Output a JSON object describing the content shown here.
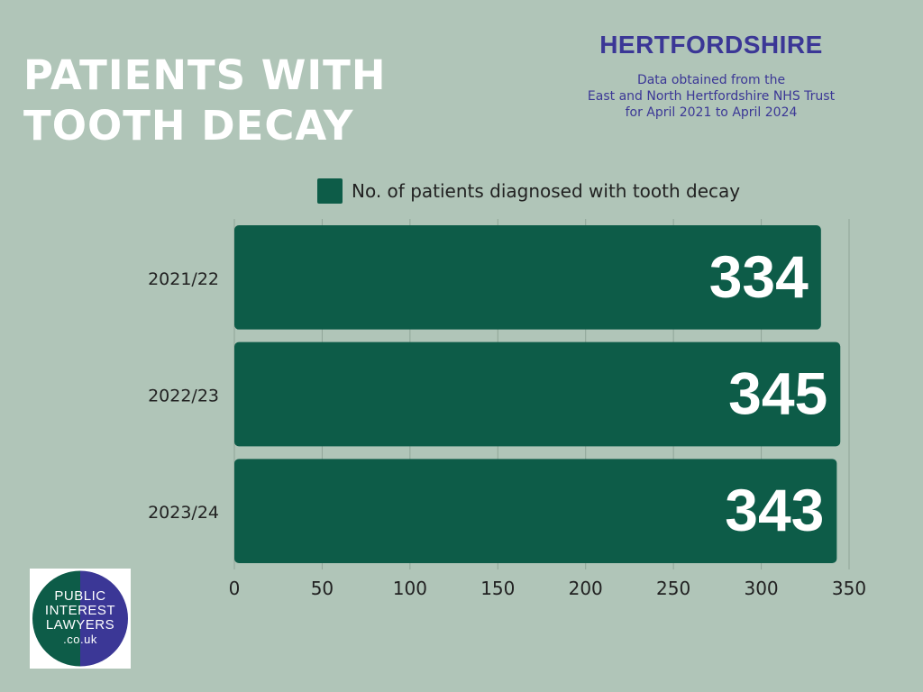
{
  "title_lines": [
    "PATIENTS WITH",
    "TOOTH DECAY"
  ],
  "region": "HERTFORDSHIRE",
  "source_lines": [
    "Data obtained from the",
    "East and North Hertfordshire NHS Trust",
    "for April 2021 to April 2024"
  ],
  "colors": {
    "background": "#b0c5b8",
    "bar": "#0d5c48",
    "title": "#ffffff",
    "accent": "#3b3796",
    "logo_green": "#0d5c48",
    "logo_purple": "#3b3796"
  },
  "logo": {
    "lines": [
      "PUBLIC",
      "INTEREST",
      "LAWYERS",
      ".co.uk"
    ]
  },
  "chart_data": {
    "type": "bar",
    "orientation": "horizontal",
    "categories": [
      "2021/22",
      "2022/23",
      "2023/24"
    ],
    "series": [
      {
        "name": "No. of patients diagnosed with tooth decay",
        "values": [
          334,
          345,
          343
        ]
      }
    ],
    "xlim": [
      0,
      350
    ],
    "xticks": [
      0,
      50,
      100,
      150,
      200,
      250,
      300,
      350
    ],
    "grid": "vertical",
    "legend_position": "top",
    "data_labels": [
      "334",
      "345",
      "343"
    ]
  }
}
